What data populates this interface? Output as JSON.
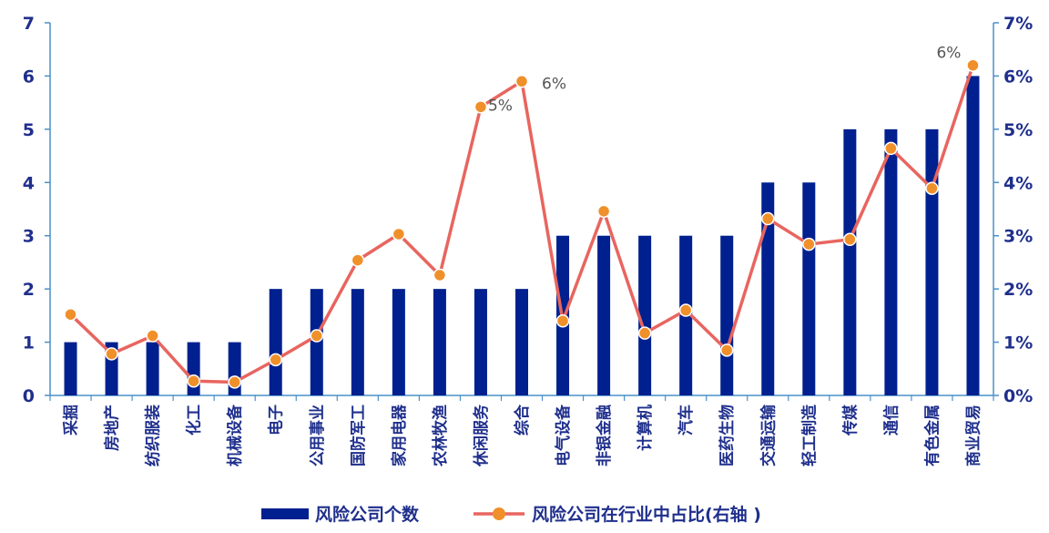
{
  "chart_data": {
    "type": "bar+line",
    "categories": [
      "采掘",
      "房地产",
      "纺织服装",
      "化工",
      "机械设备",
      "电子",
      "公用事业",
      "国防军工",
      "家用电器",
      "农林牧渔",
      "休闲服务",
      "综合",
      "电气设备",
      "非银金融",
      "计算机",
      "汽车",
      "医药生物",
      "交通运输",
      "轻工制造",
      "传媒",
      "通信",
      "有色金属",
      "商业贸易"
    ],
    "series": [
      {
        "name": "风险公司个数",
        "type": "bar",
        "axis": "left",
        "color": "#00208f",
        "values": [
          1,
          1,
          1,
          1,
          1,
          2,
          2,
          2,
          2,
          2,
          2,
          2,
          3,
          3,
          3,
          3,
          3,
          4,
          4,
          5,
          5,
          5,
          6
        ]
      },
      {
        "name": "风险公司在行业中占比(右轴 )",
        "type": "line",
        "axis": "right",
        "color": "#e8655f",
        "marker_color": "#f0902a",
        "values": [
          1.52,
          0.78,
          1.12,
          0.27,
          0.25,
          0.67,
          1.12,
          2.54,
          3.03,
          2.26,
          5.42,
          5.9,
          1.4,
          3.46,
          1.17,
          1.6,
          0.85,
          3.32,
          2.84,
          2.93,
          4.64,
          3.89,
          6.2
        ]
      }
    ],
    "y_left": {
      "min": 0,
      "max": 7,
      "ticks": [
        "0",
        "1",
        "2",
        "3",
        "4",
        "5",
        "6",
        "7"
      ]
    },
    "y_right": {
      "min": 0,
      "max": 7,
      "ticks": [
        "0%",
        "1%",
        "2%",
        "3%",
        "4%",
        "5%",
        "6%",
        "7%"
      ]
    },
    "data_labels": [
      {
        "series": 1,
        "index": 10,
        "text": "5%"
      },
      {
        "series": 1,
        "index": 11,
        "text": "6%"
      },
      {
        "series": 1,
        "index": 22,
        "text": "6%"
      }
    ],
    "legend_position": "bottom",
    "grid": false
  }
}
